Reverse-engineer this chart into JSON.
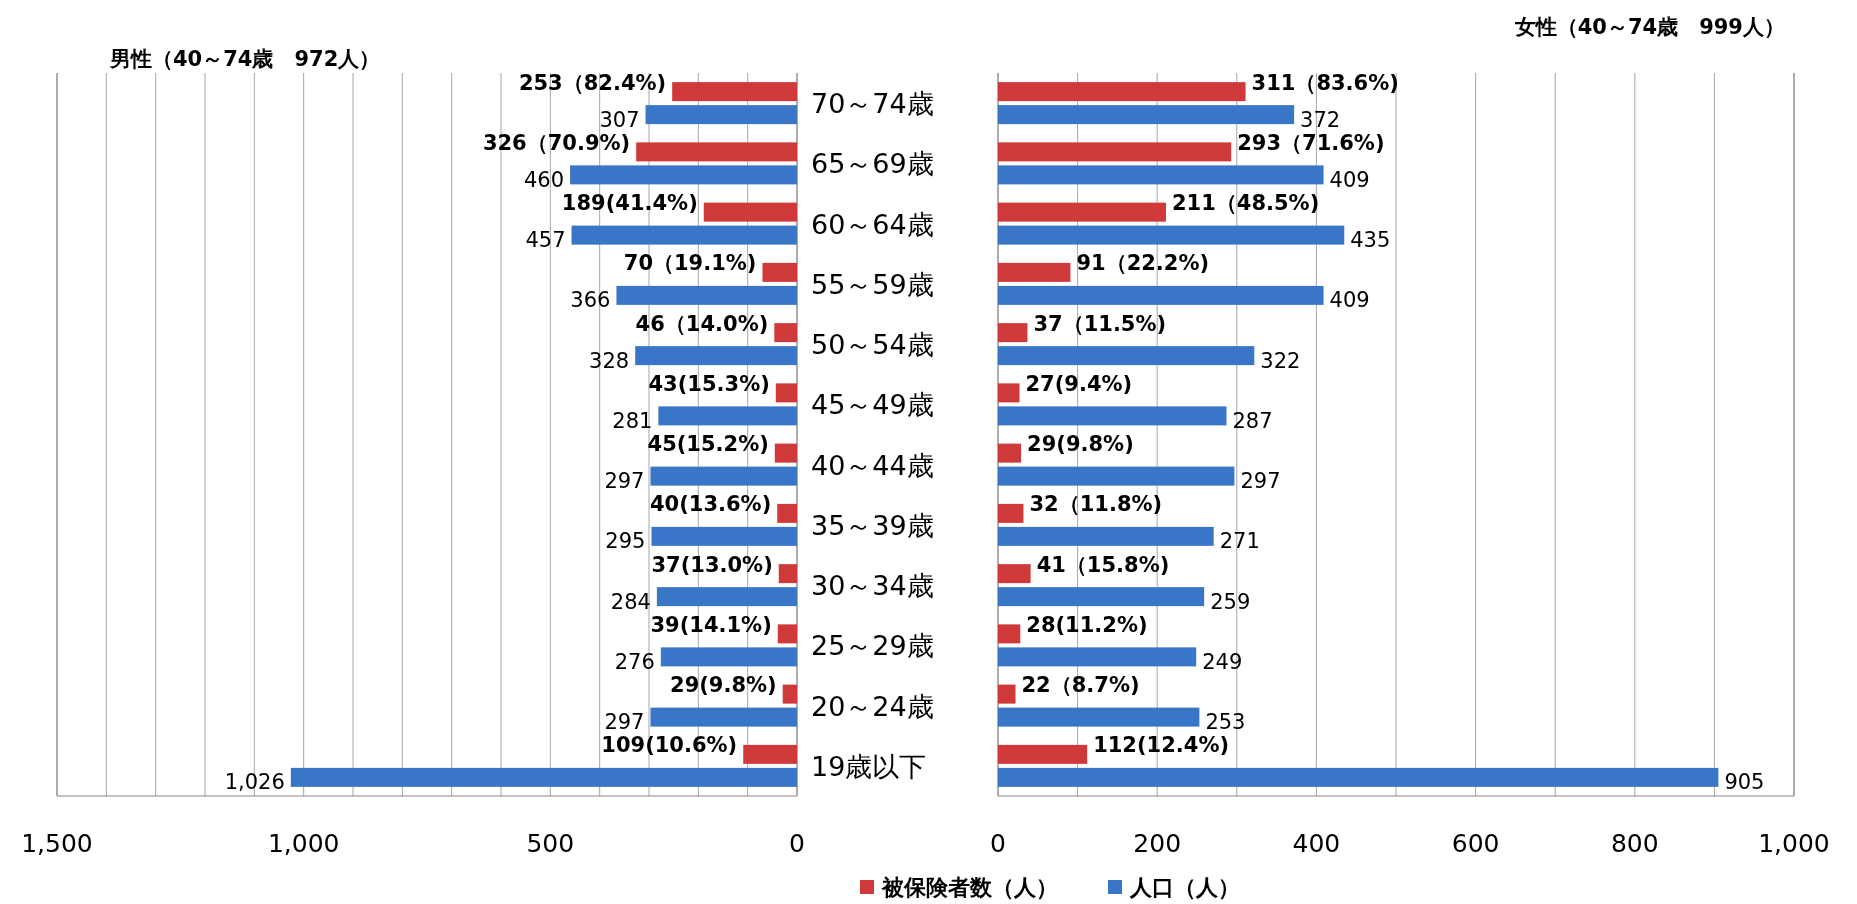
{
  "chart_data": [
    {
      "type": "bar",
      "orientation": "horizontal",
      "title": "男性（40～74歳　972人）",
      "categories": [
        "70～74歳",
        "65～69歳",
        "60～64歳",
        "55～59歳",
        "50～54歳",
        "45～49歳",
        "40～44歳",
        "35～39歳",
        "30～34歳",
        "25～29歳",
        "20～24歳",
        "19歳以下"
      ],
      "series": [
        {
          "name": "被保険者数（人）",
          "color": "#d0393a",
          "values": [
            253,
            326,
            189,
            70,
            46,
            43,
            45,
            40,
            37,
            39,
            29,
            109
          ],
          "value_labels": [
            "253（82.4%)",
            "326（70.9%)",
            "189(41.4%)",
            "70（19.1%)",
            "46（14.0%)",
            "43(15.3%)",
            "45(15.2%)",
            "40(13.6%)",
            "37(13.0%)",
            "39(14.1%)",
            "29(9.8%)",
            "109(10.6%)"
          ]
        },
        {
          "name": "人口（人）",
          "color": "#3a76c8",
          "values": [
            307,
            460,
            457,
            366,
            328,
            281,
            297,
            295,
            284,
            276,
            297,
            1026
          ],
          "value_labels": [
            "307",
            "460",
            "457",
            "366",
            "328",
            "281",
            "297",
            "295",
            "284",
            "276",
            "297",
            "1,026"
          ]
        }
      ],
      "xlim": [
        1500,
        0
      ],
      "xticks": [
        {
          "value": 1500,
          "label": "1,500"
        },
        {
          "value": 1400,
          "label": null
        },
        {
          "value": 1300,
          "label": null
        },
        {
          "value": 1200,
          "label": null
        },
        {
          "value": 1100,
          "label": null
        },
        {
          "value": 1000,
          "label": "1,000"
        },
        {
          "value": 900,
          "label": null
        },
        {
          "value": 800,
          "label": null
        },
        {
          "value": 700,
          "label": null
        },
        {
          "value": 600,
          "label": null
        },
        500,
        {
          "value": 400,
          "label": null
        },
        {
          "value": 300,
          "label": null
        },
        {
          "value": 200,
          "label": null
        },
        {
          "value": 100,
          "label": null
        },
        0
      ],
      "grid": "x",
      "tick_labels": "xy",
      "legend": "bottom"
    },
    {
      "type": "bar",
      "orientation": "horizontal",
      "title": "女性（40～74歳　999人）",
      "categories": [
        null,
        null,
        null,
        null,
        null,
        null,
        null,
        null,
        null,
        null,
        null,
        null
      ],
      "series": [
        {
          "color": "#d0393a",
          "values": [
            311,
            293,
            211,
            91,
            37,
            27,
            29,
            32,
            41,
            28,
            22,
            112
          ],
          "value_labels": [
            "311（83.6%)",
            "293（71.6%)",
            "211（48.5%)",
            "91（22.2%)",
            "37（11.5%)",
            "27(9.4%)",
            "29(9.8%)",
            "32（11.8%)",
            "41（15.8%)",
            "28(11.2%)",
            "22（8.7%)",
            "112(12.4%)"
          ]
        },
        {
          "color": "#3a76c8",
          "values": [
            372,
            409,
            435,
            409,
            322,
            287,
            297,
            271,
            259,
            249,
            253,
            905
          ],
          "value_labels": [
            "372",
            "409",
            "435",
            "409",
            "322",
            "287",
            "297",
            "271",
            "259",
            "249",
            "253",
            "905"
          ]
        }
      ],
      "xlim": [
        0,
        1000
      ],
      "xticks": [
        0,
        {
          "value": 100,
          "label": null
        },
        200,
        {
          "value": 300,
          "label": null
        },
        400,
        {
          "value": 500,
          "label": null
        },
        600,
        {
          "value": 700,
          "label": null
        },
        800,
        {
          "value": 900,
          "label": null
        },
        {
          "value": 1000,
          "label": "1,000"
        }
      ],
      "grid": "x",
      "tick_labels": "x"
    }
  ]
}
